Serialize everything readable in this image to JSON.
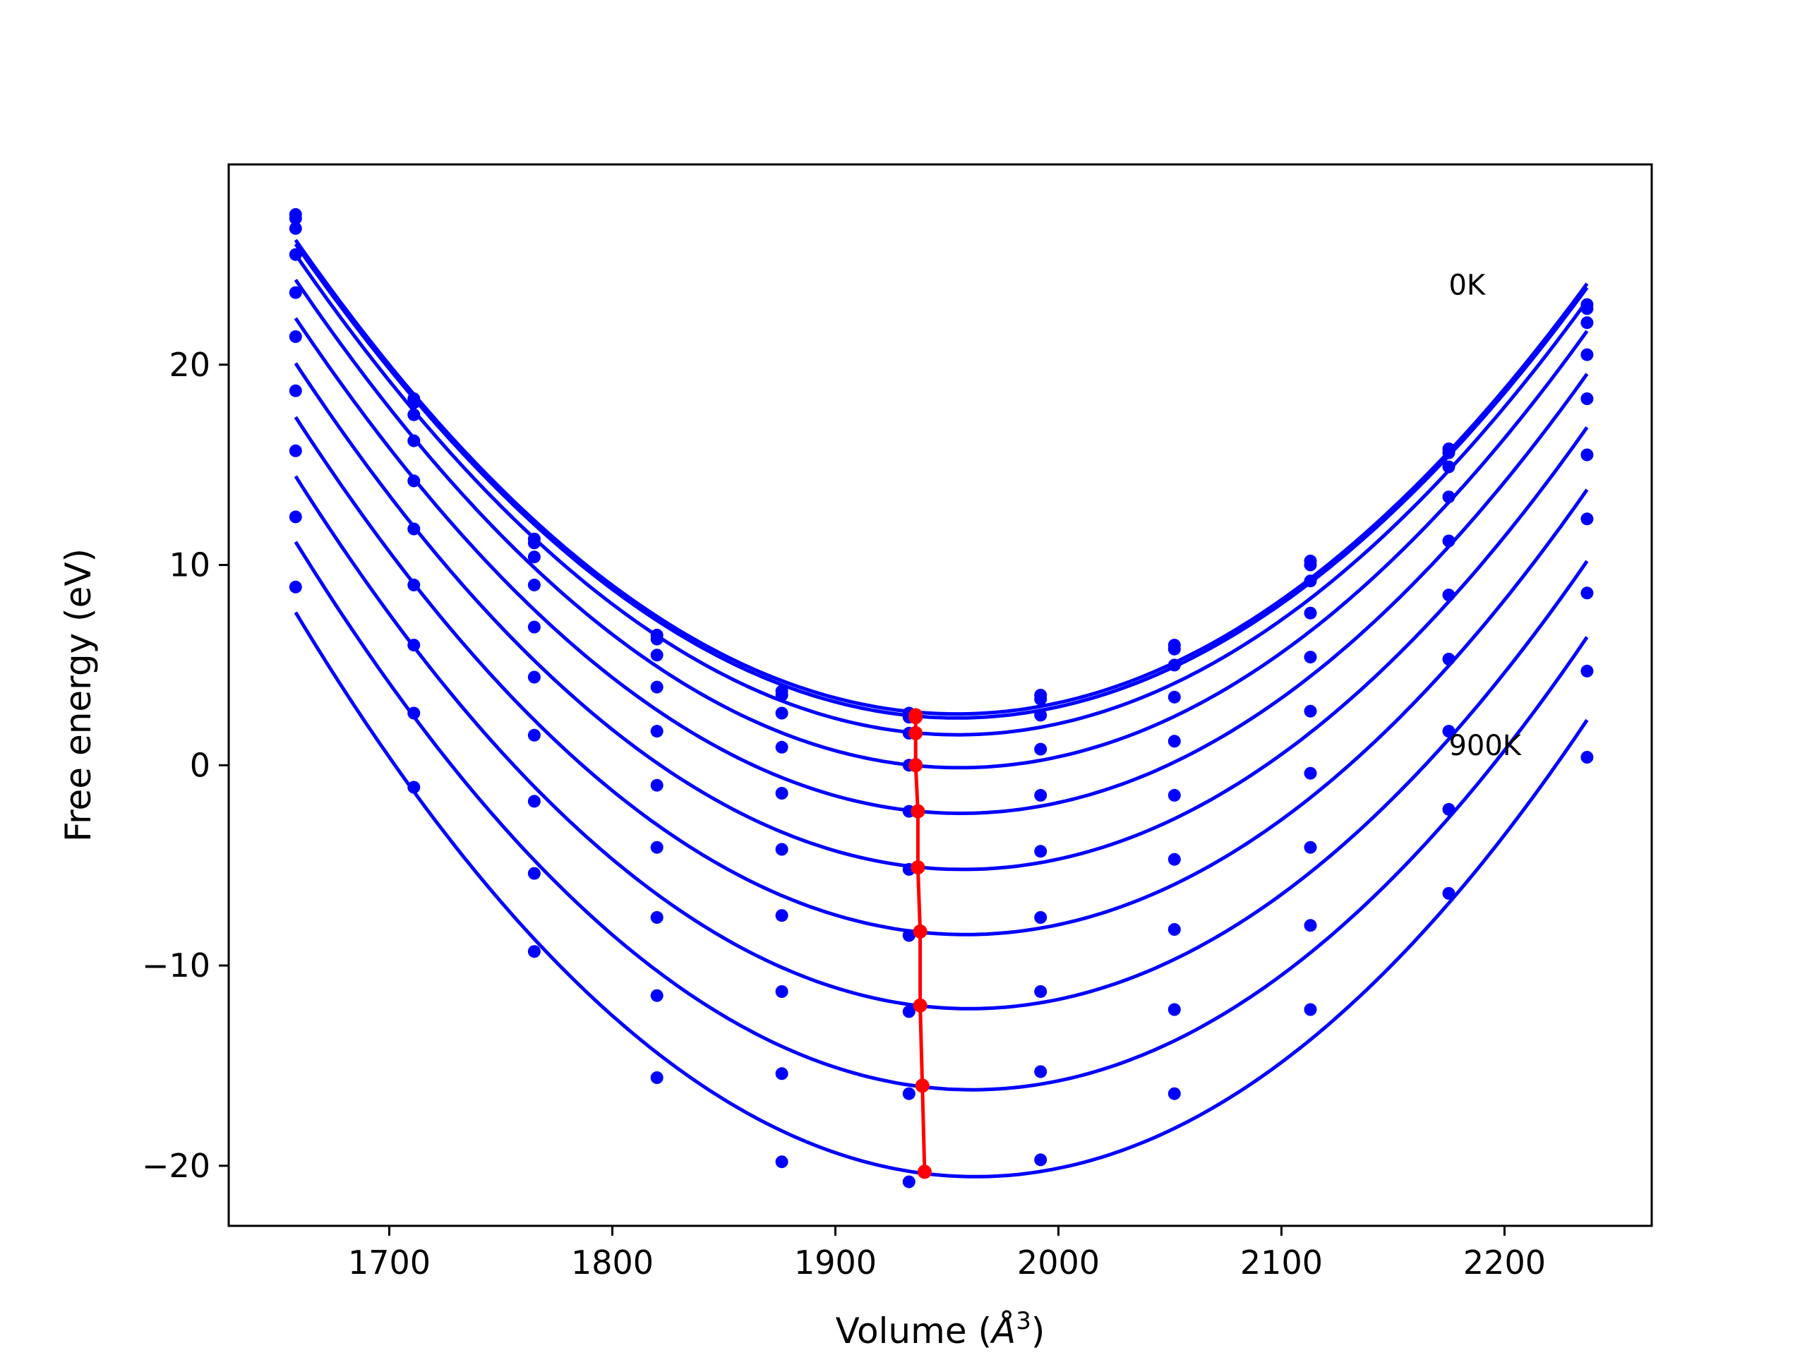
{
  "chart_data": {
    "type": "line",
    "title": "",
    "xlabel": "Volume ($\\AA^3$)",
    "xlabel_main": "Volume (",
    "xlabel_unit": "Å",
    "xlabel_sup": "3",
    "xlabel_close": ")",
    "ylabel": "Free energy (eV)",
    "xlim": [
      1628,
      2266
    ],
    "ylim": [
      -23,
      30
    ],
    "xticks": [
      1700,
      1800,
      1900,
      2000,
      2100,
      2200
    ],
    "yticks": [
      -20,
      -10,
      0,
      10,
      20
    ],
    "ytick_labels": [
      "−20",
      "−10",
      "0",
      "10",
      "20"
    ],
    "grid": false,
    "colors": {
      "curves": "#0000ff",
      "minimum_path": "#ff0000",
      "axes": "#000000"
    },
    "annotations": [
      {
        "text": "0K",
        "x": 2175,
        "y": 23.5
      },
      {
        "text": "900K",
        "x": 2175,
        "y": 0.5
      }
    ],
    "volumes": [
      1658,
      1711,
      1765,
      1820,
      1876,
      1933,
      1992,
      2052,
      2113,
      2175,
      2237
    ],
    "series": [
      {
        "minimum": [
          1936,
          2.5
        ],
        "points": [
          27.5,
          18.3,
          11.3,
          6.5,
          3.7,
          2.6,
          3.5,
          6.0,
          10.2,
          15.8,
          23.0
        ]
      },
      {
        "minimum": [
          1936,
          2.4
        ],
        "points": [
          27.3,
          18.1,
          11.1,
          6.3,
          3.5,
          2.4,
          3.3,
          5.8,
          10.0,
          15.6,
          22.8
        ]
      },
      {
        "minimum": [
          1936,
          1.6
        ],
        "points": [
          26.8,
          17.5,
          10.4,
          5.5,
          2.6,
          1.6,
          2.5,
          5.0,
          9.2,
          14.9,
          22.1
        ]
      },
      {
        "minimum": [
          1936,
          0.0
        ],
        "points": [
          25.5,
          16.2,
          9.0,
          3.9,
          0.9,
          0.0,
          0.8,
          3.4,
          7.6,
          13.4,
          20.5
        ]
      },
      {
        "minimum": [
          1937,
          -2.3
        ],
        "points": [
          23.6,
          14.2,
          6.9,
          1.7,
          -1.4,
          -2.3,
          -1.5,
          1.2,
          5.4,
          11.2,
          18.3
        ]
      },
      {
        "minimum": [
          1937,
          -5.1
        ],
        "points": [
          21.4,
          11.8,
          4.4,
          -1.0,
          -4.2,
          -5.2,
          -4.3,
          -1.5,
          2.7,
          8.5,
          15.5
        ]
      },
      {
        "minimum": [
          1938,
          -8.3
        ],
        "points": [
          18.7,
          9.0,
          1.5,
          -4.1,
          -7.5,
          -8.5,
          -7.6,
          -4.7,
          -0.4,
          5.3,
          12.3
        ]
      },
      {
        "minimum": [
          1938,
          -12.0
        ],
        "points": [
          15.7,
          6.0,
          -1.8,
          -7.6,
          -11.3,
          -12.3,
          -11.3,
          -8.2,
          -4.1,
          1.7,
          8.6
        ]
      },
      {
        "minimum": [
          1939,
          -16.0
        ],
        "points": [
          12.4,
          2.6,
          -5.4,
          -11.5,
          -15.4,
          -16.4,
          -15.3,
          -12.2,
          -8.0,
          -2.2,
          4.7
        ]
      },
      {
        "minimum": [
          1940,
          -20.3
        ],
        "points": [
          8.9,
          -1.1,
          -9.3,
          -15.6,
          -19.8,
          -20.8,
          -19.7,
          -16.4,
          -12.2,
          -6.4,
          0.4
        ]
      }
    ]
  }
}
